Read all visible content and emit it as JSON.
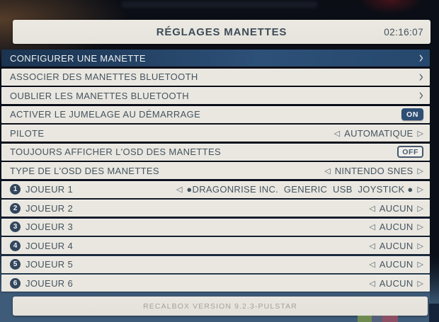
{
  "header": {
    "title": "RÉGLAGES MANETTES",
    "clock": "02:16:07"
  },
  "menu": {
    "rows": [
      {
        "label": "CONFIGURER UNE MANETTE",
        "type": "link",
        "selected": true
      },
      {
        "label": "ASSOCIER DES MANETTES BLUETOOTH",
        "type": "link"
      },
      {
        "label": "OUBLIER LES MANETTES BLUETOOTH",
        "type": "link"
      },
      {
        "label": "ACTIVER LE JUMELAGE AU DÉMARRAGE",
        "type": "toggle",
        "value": "ON",
        "state": "on"
      },
      {
        "label": "PILOTE",
        "type": "select",
        "value": "AUTOMATIQUE"
      },
      {
        "label": "TOUJOURS AFFICHER L'OSD DES MANETTES",
        "type": "toggle",
        "value": "OFF",
        "state": "off"
      },
      {
        "label": "TYPE DE L'OSD DES MANETTES",
        "type": "select",
        "value": "NINTENDO SNES"
      },
      {
        "player": "1",
        "label": "JOUEUR 1",
        "type": "select",
        "value": "●DRAGONRISE INC.  GENERIC  USB  JOYSTICK ●"
      },
      {
        "player": "2",
        "label": "JOUEUR 2",
        "type": "select",
        "value": "AUCUN"
      },
      {
        "player": "3",
        "label": "JOUEUR 3",
        "type": "select",
        "value": "AUCUN"
      },
      {
        "player": "4",
        "label": "JOUEUR 4",
        "type": "select",
        "value": "AUCUN"
      },
      {
        "player": "5",
        "label": "JOUEUR 5",
        "type": "select",
        "value": "AUCUN"
      },
      {
        "player": "6",
        "label": "JOUEUR 6",
        "type": "select",
        "value": "AUCUN"
      }
    ]
  },
  "footer": {
    "version": "RECALBOX VERSION 9.2.3-PULSTAR"
  },
  "icons": {
    "chevron_right": "›",
    "arrow_left": "◁",
    "arrow_right": "▷"
  },
  "colors": {
    "selected_row": "#2d5078",
    "row_bg": "#e9e7e0",
    "row_text": "#46545f",
    "toggle_on_bg": "#2e4e74",
    "background_bottom": "#3e5c79"
  }
}
